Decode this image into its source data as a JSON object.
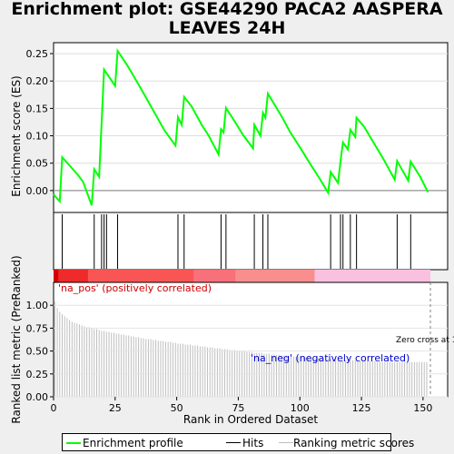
{
  "title": "Enrichment plot: GSE44290 PACA2 AASPERA LEAVES 24H",
  "colors": {
    "enrichment": "#00ff00",
    "hits": "#000000",
    "ranking": "#bebebe",
    "zero_line": "#808080"
  },
  "chart_data": [
    {
      "type": "line",
      "ylabel": "Enrichment score (ES)",
      "ylim": [
        -0.04,
        0.27
      ],
      "yticks": [
        "0.00",
        "0.05",
        "0.10",
        "0.15",
        "0.20",
        "0.25"
      ],
      "xlim": [
        0,
        160
      ],
      "series": [
        {
          "name": "Enrichment profile",
          "points": [
            [
              0,
              -0.007
            ],
            [
              2.5,
              -0.02
            ],
            [
              3.5,
              0.061
            ],
            [
              10,
              0.028
            ],
            [
              12,
              0.016
            ],
            [
              15.5,
              -0.027
            ],
            [
              16.5,
              0.039
            ],
            [
              18.5,
              0.025
            ],
            [
              20.5,
              0.221
            ],
            [
              25,
              0.191
            ],
            [
              26,
              0.255
            ],
            [
              30,
              0.228
            ],
            [
              35,
              0.19
            ],
            [
              40,
              0.15
            ],
            [
              45,
              0.11
            ],
            [
              49.5,
              0.082
            ],
            [
              50.5,
              0.134
            ],
            [
              52,
              0.12
            ],
            [
              53,
              0.171
            ],
            [
              56,
              0.154
            ],
            [
              60,
              0.121
            ],
            [
              63,
              0.1
            ],
            [
              67,
              0.066
            ],
            [
              68,
              0.112
            ],
            [
              69,
              0.106
            ],
            [
              70,
              0.151
            ],
            [
              74,
              0.123
            ],
            [
              77,
              0.101
            ],
            [
              81,
              0.077
            ],
            [
              81.5,
              0.12
            ],
            [
              84,
              0.1
            ],
            [
              85,
              0.142
            ],
            [
              86,
              0.133
            ],
            [
              87,
              0.177
            ],
            [
              90,
              0.155
            ],
            [
              93,
              0.132
            ],
            [
              96,
              0.107
            ],
            [
              100,
              0.079
            ],
            [
              104,
              0.05
            ],
            [
              108,
              0.022
            ],
            [
              111.5,
              -0.004
            ],
            [
              112.5,
              0.034
            ],
            [
              115.5,
              0.014
            ],
            [
              116.5,
              0.053
            ],
            [
              117.5,
              0.088
            ],
            [
              119.5,
              0.075
            ],
            [
              120.5,
              0.111
            ],
            [
              122.5,
              0.098
            ],
            [
              123,
              0.133
            ],
            [
              126,
              0.117
            ],
            [
              130,
              0.087
            ],
            [
              134,
              0.057
            ],
            [
              138.5,
              0.02
            ],
            [
              139.5,
              0.054
            ],
            [
              144,
              0.018
            ],
            [
              145,
              0.053
            ],
            [
              149,
              0.024
            ],
            [
              152,
              -0.003
            ]
          ]
        }
      ]
    },
    {
      "type": "scatter",
      "series": [
        {
          "name": "Hits",
          "x": [
            3.5,
            16.5,
            19.5,
            20.5,
            21.5,
            26,
            50.5,
            53,
            68,
            70,
            81.5,
            85,
            87,
            112.5,
            116.5,
            117.5,
            120.5,
            123,
            139.5,
            145
          ]
        }
      ]
    },
    {
      "type": "bar",
      "series": [
        {
          "name": "Ranking metric scores",
          "values": [
            1.04,
            0.97,
            0.93,
            0.9,
            0.88,
            0.86,
            0.84,
            0.82,
            0.81,
            0.8,
            0.79,
            0.78,
            0.77,
            0.76,
            0.76,
            0.75,
            0.74,
            0.74,
            0.73,
            0.72,
            0.72,
            0.71,
            0.71,
            0.7,
            0.7,
            0.69,
            0.69,
            0.68,
            0.68,
            0.67,
            0.67,
            0.66,
            0.66,
            0.65,
            0.65,
            0.64,
            0.64,
            0.63,
            0.63,
            0.63,
            0.62,
            0.62,
            0.61,
            0.61,
            0.61,
            0.6,
            0.6,
            0.6,
            0.59,
            0.59,
            0.58,
            0.58,
            0.58,
            0.57,
            0.57,
            0.57,
            0.56,
            0.56,
            0.56,
            0.55,
            0.55,
            0.55,
            0.54,
            0.54,
            0.54,
            0.53,
            0.53,
            0.53,
            0.52,
            0.52,
            0.52,
            0.51,
            0.51,
            0.51,
            0.5,
            0.5,
            0.5,
            0.5,
            0.49,
            0.49,
            0.49,
            0.48,
            0.48,
            0.48,
            0.48,
            0.47,
            0.47,
            0.47,
            0.46,
            0.46,
            0.46,
            0.46,
            0.45,
            0.45,
            0.45,
            0.45,
            0.44,
            0.44,
            0.44,
            0.44,
            0.43,
            0.43,
            0.43,
            0.43,
            0.43,
            0.42,
            0.42,
            0.42,
            0.42,
            0.42,
            0.41,
            0.41,
            0.41,
            0.41,
            0.41,
            0.41,
            0.4,
            0.4,
            0.4,
            0.4,
            0.4,
            0.4,
            0.4,
            0.39,
            0.39,
            0.39,
            0.39,
            0.39,
            0.39,
            0.39,
            0.39,
            0.38,
            0.38,
            0.38,
            0.38,
            0.38,
            0.38,
            0.38,
            0.38,
            0.38,
            0.38,
            0.38,
            0.38,
            0.38,
            0.38,
            0.38,
            0.38,
            0.38,
            0.38,
            0.38,
            0.38,
            0.38
          ]
        }
      ],
      "xlabel": "Rank in Ordered Dataset",
      "ylabel": "Ranked list metric (PreRanked)",
      "ylim": [
        0,
        1.25
      ],
      "yticks": [
        "0.00",
        "0.25",
        "0.50",
        "0.75",
        "1.00"
      ],
      "xticks": [
        "0",
        "25",
        "50",
        "75",
        "100",
        "125",
        "150"
      ],
      "xlim": [
        0,
        160
      ],
      "annotations": {
        "positive": "'na_pos' (positively correlated)",
        "negative": "'na_neg' (negatively correlated)",
        "zero_cross": "Zero cross at 153",
        "zero_cross_x": 153
      }
    }
  ],
  "color_bar": [
    {
      "from": 0,
      "to": 2,
      "color": "#d40000"
    },
    {
      "from": 2,
      "to": 14,
      "color": "#ee2a2a"
    },
    {
      "from": 14,
      "to": 57,
      "color": "#fa5555"
    },
    {
      "from": 57,
      "to": 74,
      "color": "#f8707a"
    },
    {
      "from": 74,
      "to": 106,
      "color": "#f88e8e"
    },
    {
      "from": 106,
      "to": 153,
      "color": "#f9c0e0"
    }
  ],
  "legend": [
    {
      "label": "Enrichment profile",
      "color": "#00ff00"
    },
    {
      "label": "Hits",
      "color": "#000000"
    },
    {
      "label": "Ranking metric scores",
      "color": "#bebebe"
    }
  ]
}
